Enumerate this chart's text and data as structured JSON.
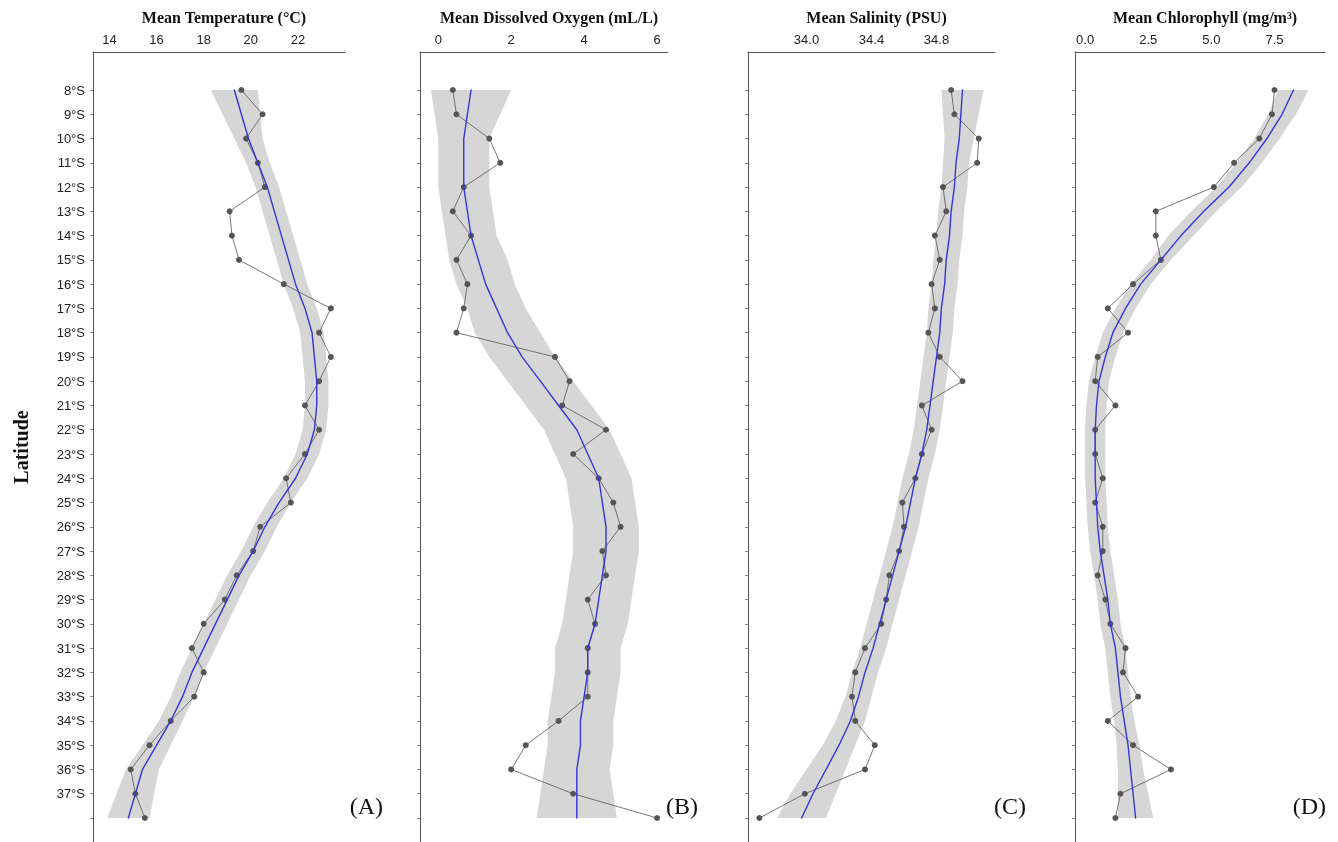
{
  "chart_data": [
    {
      "type": "line",
      "title": "Mean Temperature (°C)",
      "ylabel": "Latitude",
      "annotations": [
        "(A)"
      ],
      "categories": [
        "8°S",
        "9°S",
        "10°S",
        "11°S",
        "12°S",
        "13°S",
        "14°S",
        "15°S",
        "16°S",
        "17°S",
        "18°S",
        "19°S",
        "20°S",
        "21°S",
        "22°S",
        "23°S",
        "24°S",
        "25°S",
        "26°S",
        "27°S",
        "28°S",
        "29°S",
        "30°S",
        "31°S",
        "32°S",
        "33°S",
        "34°S",
        "35°S",
        "36°S",
        "37°S",
        null
      ],
      "orientation": "horizontal",
      "xlim": [
        13.3,
        24
      ],
      "xticks": [
        14,
        16,
        18,
        20,
        22
      ],
      "grid": false,
      "series": [
        {
          "color": "#555555",
          "marker": "circle",
          "values": [
            19.6,
            20.5,
            19.8,
            20.3,
            20.6,
            19.1,
            19.2,
            19.5,
            21.4,
            23.4,
            22.9,
            23.4,
            22.9,
            22.3,
            22.9,
            22.3,
            21.5,
            21.7,
            20.4,
            20.1,
            19.4,
            18.9,
            18.0,
            17.5,
            18.0,
            17.6,
            16.6,
            15.7,
            14.9,
            15.1,
            15.5
          ]
        },
        {
          "color": "#3535d8",
          "marker": "none",
          "values": [
            19.3,
            19.6,
            19.9,
            20.3,
            20.7,
            21.0,
            21.3,
            21.6,
            21.9,
            22.3,
            22.6,
            22.7,
            22.8,
            22.8,
            22.7,
            22.4,
            21.9,
            21.2,
            20.6,
            20.1,
            19.5,
            19.0,
            18.5,
            18.0,
            17.5,
            17.1,
            16.6,
            16.0,
            15.4,
            15.1,
            14.8
          ],
          "lower": [
            18.3,
            18.8,
            19.3,
            19.8,
            20.2,
            20.5,
            20.8,
            21.1,
            21.4,
            21.8,
            22.1,
            22.2,
            22.3,
            22.3,
            22.2,
            21.9,
            21.4,
            20.7,
            20.1,
            19.6,
            19.0,
            18.5,
            18.0,
            17.5,
            17.0,
            16.6,
            16.1,
            15.4,
            14.7,
            14.3,
            13.9
          ],
          "upper": [
            20.3,
            20.4,
            20.5,
            20.8,
            21.2,
            21.5,
            21.8,
            22.1,
            22.4,
            22.8,
            23.1,
            23.2,
            23.3,
            23.3,
            23.2,
            22.9,
            22.4,
            21.7,
            21.1,
            20.6,
            20.0,
            19.5,
            19.0,
            18.5,
            18.0,
            17.6,
            17.1,
            16.6,
            16.1,
            15.9,
            15.7
          ]
        }
      ]
    },
    {
      "type": "line",
      "title": "Mean Dissolved Oxygen (mL/L)",
      "annotations": [
        "(B)"
      ],
      "tick_labels": "x",
      "categories": [
        null,
        null,
        null,
        null,
        null,
        null,
        null,
        null,
        null,
        null,
        null,
        null,
        null,
        null,
        null,
        null,
        null,
        null,
        null,
        null,
        null,
        null,
        null,
        null,
        null,
        null,
        null,
        null,
        null,
        null,
        null
      ],
      "orientation": "horizontal",
      "xlim": [
        -0.5,
        6.3
      ],
      "xticks": [
        0,
        2,
        4,
        6
      ],
      "grid": false,
      "series": [
        {
          "color": "#555555",
          "marker": "circle",
          "values": [
            0.4,
            0.5,
            1.4,
            1.7,
            0.7,
            0.4,
            0.9,
            0.5,
            0.8,
            0.7,
            0.5,
            3.2,
            3.6,
            3.4,
            4.6,
            3.7,
            4.4,
            4.8,
            5.0,
            4.5,
            4.6,
            4.1,
            4.3,
            4.1,
            4.1,
            4.1,
            3.3,
            2.4,
            2.0,
            3.7,
            6.0
          ]
        },
        {
          "color": "#3535d8",
          "marker": "none",
          "values": [
            0.9,
            0.8,
            0.7,
            0.7,
            0.7,
            0.8,
            0.9,
            1.1,
            1.3,
            1.6,
            1.9,
            2.3,
            2.8,
            3.3,
            3.8,
            4.1,
            4.4,
            4.5,
            4.6,
            4.6,
            4.5,
            4.4,
            4.3,
            4.1,
            4.1,
            4.0,
            3.9,
            3.9,
            3.8,
            3.8,
            3.8
          ],
          "lower": [
            -0.2,
            -0.1,
            0.0,
            0.0,
            0.0,
            0.1,
            0.2,
            0.3,
            0.5,
            0.8,
            1.0,
            1.4,
            1.9,
            2.4,
            2.9,
            3.2,
            3.5,
            3.6,
            3.7,
            3.7,
            3.6,
            3.5,
            3.4,
            3.2,
            3.2,
            3.1,
            3.0,
            3.0,
            2.9,
            2.8,
            2.7
          ],
          "upper": [
            2.0,
            1.7,
            1.4,
            1.4,
            1.4,
            1.5,
            1.6,
            1.9,
            2.1,
            2.4,
            2.8,
            3.2,
            3.7,
            4.2,
            4.7,
            5.0,
            5.3,
            5.4,
            5.5,
            5.5,
            5.4,
            5.3,
            5.2,
            5.0,
            5.0,
            4.9,
            4.8,
            4.8,
            4.7,
            4.8,
            4.9
          ]
        }
      ]
    },
    {
      "type": "line",
      "title": "Mean Salinity (PSU)",
      "annotations": [
        "(C)"
      ],
      "tick_labels": "x",
      "categories": [
        null,
        null,
        null,
        null,
        null,
        null,
        null,
        null,
        null,
        null,
        null,
        null,
        null,
        null,
        null,
        null,
        null,
        null,
        null,
        null,
        null,
        null,
        null,
        null,
        null,
        null,
        null,
        null,
        null,
        null,
        null
      ],
      "orientation": "horizontal",
      "xlim": [
        33.64,
        35.16
      ],
      "xticks": [
        {
          "value": 34.0,
          "label": "34.0"
        },
        34.4,
        34.8
      ],
      "grid": false,
      "series": [
        {
          "color": "#555555",
          "marker": "circle",
          "values": [
            34.89,
            34.91,
            35.06,
            35.05,
            34.84,
            34.86,
            34.79,
            34.82,
            34.77,
            34.79,
            34.75,
            34.82,
            34.96,
            34.71,
            34.77,
            34.71,
            34.67,
            34.59,
            34.6,
            34.57,
            34.51,
            34.49,
            34.46,
            34.36,
            34.3,
            34.28,
            34.3,
            34.42,
            34.36,
            33.99,
            33.71
          ]
        },
        {
          "color": "#3535d8",
          "marker": "none",
          "values": [
            34.96,
            34.95,
            34.94,
            34.92,
            34.91,
            34.89,
            34.88,
            34.86,
            34.85,
            34.83,
            34.82,
            34.8,
            34.78,
            34.76,
            34.74,
            34.71,
            34.67,
            34.64,
            34.61,
            34.57,
            34.53,
            34.49,
            34.45,
            34.41,
            34.36,
            34.32,
            34.27,
            34.2,
            34.12,
            34.04,
            33.97
          ],
          "lower": [
            34.83,
            34.84,
            34.85,
            34.84,
            34.83,
            34.81,
            34.8,
            34.78,
            34.77,
            34.75,
            34.74,
            34.72,
            34.7,
            34.68,
            34.66,
            34.63,
            34.59,
            34.56,
            34.53,
            34.49,
            34.45,
            34.41,
            34.37,
            34.33,
            34.28,
            34.24,
            34.18,
            34.1,
            34.0,
            33.9,
            33.82
          ],
          "upper": [
            35.09,
            35.06,
            35.03,
            35.0,
            34.99,
            34.97,
            34.96,
            34.94,
            34.93,
            34.91,
            34.9,
            34.88,
            34.86,
            34.84,
            34.82,
            34.79,
            34.75,
            34.72,
            34.69,
            34.65,
            34.61,
            34.57,
            34.53,
            34.49,
            34.44,
            34.4,
            34.36,
            34.3,
            34.24,
            34.18,
            34.12
          ]
        }
      ]
    },
    {
      "type": "line",
      "title": "Mean Chlorophyll (mg/m³)",
      "annotations": [
        "(D)"
      ],
      "tick_labels": "x",
      "categories": [
        null,
        null,
        null,
        null,
        null,
        null,
        null,
        null,
        null,
        null,
        null,
        null,
        null,
        null,
        null,
        null,
        null,
        null,
        null,
        null,
        null,
        null,
        null,
        null,
        null,
        null,
        null,
        null,
        null,
        null,
        null
      ],
      "orientation": "horizontal",
      "xlim": [
        -0.4,
        9.5
      ],
      "xticks": [
        {
          "value": 0,
          "label": "0.0"
        },
        2.5,
        {
          "value": 5,
          "label": "5.0"
        },
        7.5
      ],
      "grid": false,
      "series": [
        {
          "color": "#555555",
          "marker": "circle",
          "values": [
            7.5,
            7.4,
            6.9,
            5.9,
            5.1,
            2.8,
            2.8,
            3.0,
            1.9,
            0.9,
            1.7,
            0.5,
            0.4,
            1.2,
            0.4,
            0.4,
            0.7,
            0.4,
            0.7,
            0.7,
            0.5,
            0.8,
            1.0,
            1.6,
            1.5,
            2.1,
            0.9,
            1.9,
            3.4,
            1.4,
            1.2
          ]
        },
        {
          "color": "#3535d8",
          "marker": "none",
          "values": [
            8.25,
            7.8,
            7.2,
            6.5,
            5.7,
            4.7,
            3.8,
            3.0,
            2.2,
            1.6,
            1.1,
            0.8,
            0.55,
            0.45,
            0.4,
            0.4,
            0.4,
            0.45,
            0.5,
            0.6,
            0.75,
            0.9,
            1.0,
            1.2,
            1.3,
            1.4,
            1.55,
            1.7,
            1.8,
            1.9,
            2.0
          ],
          "lower": [
            7.65,
            7.25,
            6.7,
            6.0,
            5.2,
            4.2,
            3.3,
            2.6,
            1.8,
            1.2,
            0.7,
            0.4,
            0.15,
            0.05,
            0.0,
            0.0,
            0.0,
            0.05,
            0.1,
            0.2,
            0.35,
            0.5,
            0.6,
            0.8,
            0.9,
            1.0,
            1.15,
            1.25,
            1.3,
            1.3,
            1.3
          ],
          "upper": [
            8.85,
            8.35,
            7.7,
            7.0,
            6.2,
            5.2,
            4.3,
            3.4,
            2.6,
            2.0,
            1.5,
            1.2,
            0.95,
            0.85,
            0.8,
            0.8,
            0.8,
            0.85,
            0.9,
            1.0,
            1.15,
            1.3,
            1.4,
            1.6,
            1.7,
            1.8,
            1.95,
            2.15,
            2.3,
            2.5,
            2.7
          ]
        }
      ]
    }
  ]
}
